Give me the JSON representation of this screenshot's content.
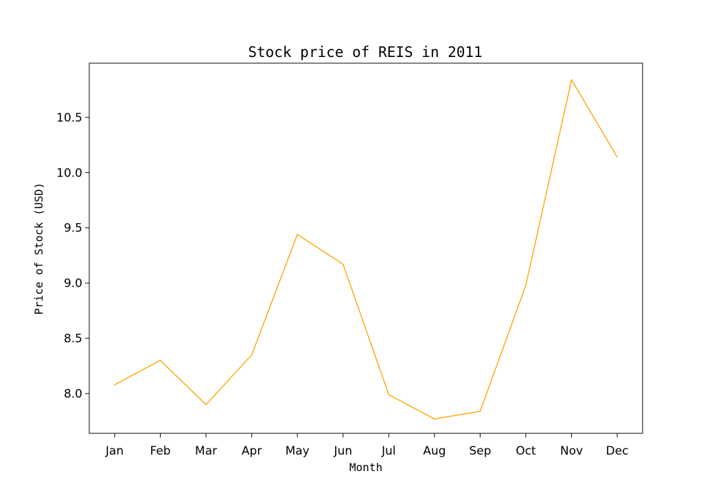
{
  "chart_data": {
    "type": "line",
    "title": "Stock price of REIS in 2011",
    "xlabel": "Month",
    "ylabel": "Price of Stock (USD)",
    "categories": [
      "Jan",
      "Feb",
      "Mar",
      "Apr",
      "May",
      "Jun",
      "Jul",
      "Aug",
      "Sep",
      "Oct",
      "Nov",
      "Dec"
    ],
    "yticks": [
      8.0,
      8.5,
      9.0,
      9.5,
      10.0,
      10.5
    ],
    "ytick_labels": [
      "8.0",
      "8.5",
      "9.0",
      "9.5",
      "10.0",
      "10.5"
    ],
    "ylim": [
      7.64,
      10.99
    ],
    "grid": false,
    "series": [
      {
        "color": "#ffa500",
        "values": [
          8.08,
          8.3,
          7.9,
          8.35,
          9.44,
          9.17,
          7.99,
          7.77,
          7.84,
          8.98,
          10.84,
          10.14
        ]
      }
    ]
  }
}
